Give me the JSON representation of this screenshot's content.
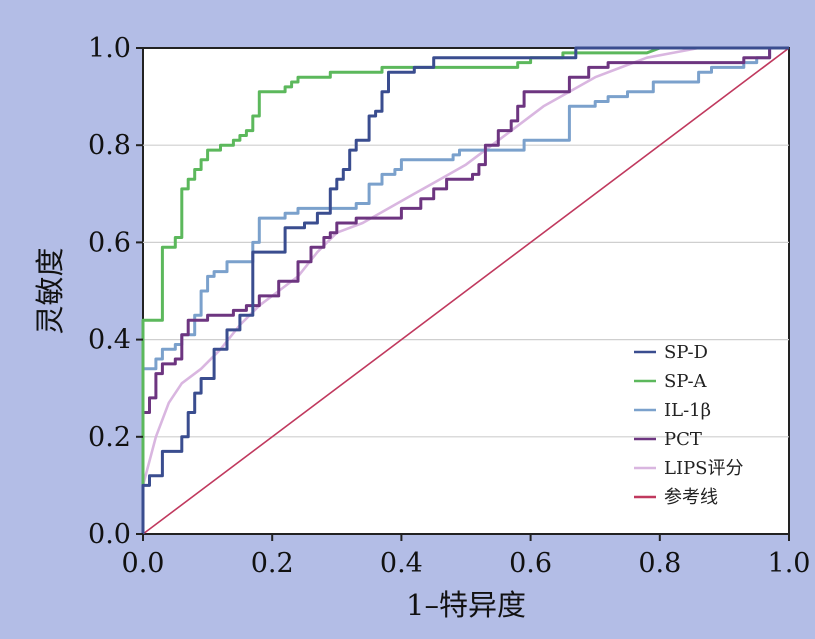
{
  "chart_data": {
    "type": "line",
    "title": "",
    "xlabel": "1–特异度",
    "ylabel": "灵敏度",
    "xlim": [
      0,
      1
    ],
    "ylim": [
      0,
      1
    ],
    "x_ticks": [
      "0.0",
      "0.2",
      "0.4",
      "0.6",
      "0.8",
      "1.0"
    ],
    "y_ticks": [
      "0.0",
      "0.2",
      "0.4",
      "0.6",
      "0.8",
      "1.0"
    ],
    "grid": "horizontal",
    "legend_position": "bottom-right",
    "series": [
      {
        "name": "SP-D",
        "color": "#3a4d8f",
        "points": [
          [
            0,
            0
          ],
          [
            0,
            0.1
          ],
          [
            0.01,
            0.1
          ],
          [
            0.01,
            0.12
          ],
          [
            0.03,
            0.12
          ],
          [
            0.03,
            0.17
          ],
          [
            0.06,
            0.17
          ],
          [
            0.06,
            0.2
          ],
          [
            0.07,
            0.2
          ],
          [
            0.07,
            0.25
          ],
          [
            0.08,
            0.25
          ],
          [
            0.08,
            0.29
          ],
          [
            0.09,
            0.29
          ],
          [
            0.09,
            0.32
          ],
          [
            0.11,
            0.32
          ],
          [
            0.11,
            0.38
          ],
          [
            0.13,
            0.38
          ],
          [
            0.13,
            0.42
          ],
          [
            0.15,
            0.42
          ],
          [
            0.15,
            0.45
          ],
          [
            0.17,
            0.45
          ],
          [
            0.17,
            0.58
          ],
          [
            0.22,
            0.58
          ],
          [
            0.22,
            0.63
          ],
          [
            0.25,
            0.63
          ],
          [
            0.25,
            0.64
          ],
          [
            0.27,
            0.64
          ],
          [
            0.27,
            0.66
          ],
          [
            0.29,
            0.66
          ],
          [
            0.29,
            0.71
          ],
          [
            0.3,
            0.71
          ],
          [
            0.3,
            0.73
          ],
          [
            0.31,
            0.73
          ],
          [
            0.31,
            0.75
          ],
          [
            0.32,
            0.75
          ],
          [
            0.32,
            0.79
          ],
          [
            0.33,
            0.79
          ],
          [
            0.33,
            0.81
          ],
          [
            0.35,
            0.81
          ],
          [
            0.35,
            0.86
          ],
          [
            0.36,
            0.86
          ],
          [
            0.36,
            0.87
          ],
          [
            0.37,
            0.87
          ],
          [
            0.37,
            0.91
          ],
          [
            0.38,
            0.91
          ],
          [
            0.38,
            0.95
          ],
          [
            0.42,
            0.95
          ],
          [
            0.42,
            0.96
          ],
          [
            0.45,
            0.96
          ],
          [
            0.45,
            0.98
          ],
          [
            0.6,
            0.98
          ],
          [
            0.67,
            0.98
          ],
          [
            0.67,
            1.0
          ],
          [
            1.0,
            1.0
          ]
        ]
      },
      {
        "name": "SP-A",
        "color": "#5cb85c",
        "points": [
          [
            0,
            0
          ],
          [
            0,
            0.44
          ],
          [
            0.03,
            0.44
          ],
          [
            0.03,
            0.59
          ],
          [
            0.05,
            0.59
          ],
          [
            0.05,
            0.61
          ],
          [
            0.06,
            0.61
          ],
          [
            0.06,
            0.65
          ],
          [
            0.06,
            0.71
          ],
          [
            0.07,
            0.71
          ],
          [
            0.07,
            0.73
          ],
          [
            0.08,
            0.73
          ],
          [
            0.08,
            0.75
          ],
          [
            0.09,
            0.75
          ],
          [
            0.09,
            0.77
          ],
          [
            0.1,
            0.77
          ],
          [
            0.1,
            0.79
          ],
          [
            0.12,
            0.79
          ],
          [
            0.12,
            0.8
          ],
          [
            0.14,
            0.8
          ],
          [
            0.14,
            0.81
          ],
          [
            0.15,
            0.81
          ],
          [
            0.15,
            0.82
          ],
          [
            0.16,
            0.82
          ],
          [
            0.16,
            0.83
          ],
          [
            0.17,
            0.83
          ],
          [
            0.17,
            0.86
          ],
          [
            0.18,
            0.86
          ],
          [
            0.18,
            0.91
          ],
          [
            0.22,
            0.91
          ],
          [
            0.22,
            0.92
          ],
          [
            0.23,
            0.92
          ],
          [
            0.23,
            0.93
          ],
          [
            0.24,
            0.93
          ],
          [
            0.24,
            0.94
          ],
          [
            0.29,
            0.94
          ],
          [
            0.29,
            0.95
          ],
          [
            0.37,
            0.95
          ],
          [
            0.37,
            0.96
          ],
          [
            0.58,
            0.96
          ],
          [
            0.58,
            0.97
          ],
          [
            0.6,
            0.97
          ],
          [
            0.6,
            0.98
          ],
          [
            0.65,
            0.98
          ],
          [
            0.65,
            0.99
          ],
          [
            0.78,
            0.99
          ],
          [
            0.8,
            1.0
          ],
          [
            1.0,
            1.0
          ]
        ]
      },
      {
        "name": "IL-1β",
        "color": "#7ba1cc",
        "points": [
          [
            0,
            0
          ],
          [
            0,
            0.34
          ],
          [
            0.02,
            0.34
          ],
          [
            0.02,
            0.36
          ],
          [
            0.03,
            0.36
          ],
          [
            0.03,
            0.38
          ],
          [
            0.05,
            0.38
          ],
          [
            0.05,
            0.39
          ],
          [
            0.06,
            0.39
          ],
          [
            0.06,
            0.41
          ],
          [
            0.08,
            0.41
          ],
          [
            0.08,
            0.45
          ],
          [
            0.09,
            0.45
          ],
          [
            0.09,
            0.5
          ],
          [
            0.1,
            0.5
          ],
          [
            0.1,
            0.53
          ],
          [
            0.11,
            0.53
          ],
          [
            0.11,
            0.54
          ],
          [
            0.13,
            0.54
          ],
          [
            0.13,
            0.56
          ],
          [
            0.17,
            0.56
          ],
          [
            0.17,
            0.6
          ],
          [
            0.18,
            0.6
          ],
          [
            0.18,
            0.65
          ],
          [
            0.22,
            0.65
          ],
          [
            0.22,
            0.66
          ],
          [
            0.24,
            0.66
          ],
          [
            0.24,
            0.67
          ],
          [
            0.33,
            0.67
          ],
          [
            0.33,
            0.68
          ],
          [
            0.35,
            0.68
          ],
          [
            0.35,
            0.72
          ],
          [
            0.37,
            0.72
          ],
          [
            0.37,
            0.74
          ],
          [
            0.39,
            0.74
          ],
          [
            0.39,
            0.75
          ],
          [
            0.4,
            0.75
          ],
          [
            0.4,
            0.77
          ],
          [
            0.48,
            0.77
          ],
          [
            0.48,
            0.78
          ],
          [
            0.49,
            0.78
          ],
          [
            0.49,
            0.79
          ],
          [
            0.59,
            0.79
          ],
          [
            0.59,
            0.81
          ],
          [
            0.66,
            0.81
          ],
          [
            0.66,
            0.88
          ],
          [
            0.7,
            0.88
          ],
          [
            0.7,
            0.89
          ],
          [
            0.72,
            0.89
          ],
          [
            0.72,
            0.9
          ],
          [
            0.75,
            0.9
          ],
          [
            0.75,
            0.91
          ],
          [
            0.79,
            0.91
          ],
          [
            0.79,
            0.93
          ],
          [
            0.86,
            0.93
          ],
          [
            0.86,
            0.95
          ],
          [
            0.88,
            0.95
          ],
          [
            0.88,
            0.96
          ],
          [
            0.93,
            0.96
          ],
          [
            0.93,
            0.97
          ],
          [
            0.95,
            0.97
          ],
          [
            0.95,
            0.98
          ],
          [
            0.97,
            0.98
          ],
          [
            0.97,
            1.0
          ],
          [
            1.0,
            1.0
          ]
        ]
      },
      {
        "name": "PCT",
        "color": "#6d3580",
        "points": [
          [
            0,
            0
          ],
          [
            0,
            0.25
          ],
          [
            0.01,
            0.25
          ],
          [
            0.01,
            0.28
          ],
          [
            0.02,
            0.28
          ],
          [
            0.02,
            0.33
          ],
          [
            0.03,
            0.33
          ],
          [
            0.03,
            0.35
          ],
          [
            0.05,
            0.35
          ],
          [
            0.05,
            0.36
          ],
          [
            0.06,
            0.36
          ],
          [
            0.06,
            0.41
          ],
          [
            0.07,
            0.41
          ],
          [
            0.07,
            0.44
          ],
          [
            0.1,
            0.44
          ],
          [
            0.1,
            0.45
          ],
          [
            0.14,
            0.45
          ],
          [
            0.14,
            0.46
          ],
          [
            0.16,
            0.46
          ],
          [
            0.16,
            0.47
          ],
          [
            0.18,
            0.47
          ],
          [
            0.18,
            0.49
          ],
          [
            0.21,
            0.49
          ],
          [
            0.21,
            0.52
          ],
          [
            0.24,
            0.52
          ],
          [
            0.24,
            0.56
          ],
          [
            0.26,
            0.56
          ],
          [
            0.26,
            0.59
          ],
          [
            0.28,
            0.59
          ],
          [
            0.28,
            0.61
          ],
          [
            0.29,
            0.61
          ],
          [
            0.29,
            0.62
          ],
          [
            0.3,
            0.62
          ],
          [
            0.3,
            0.64
          ],
          [
            0.33,
            0.64
          ],
          [
            0.33,
            0.65
          ],
          [
            0.4,
            0.65
          ],
          [
            0.4,
            0.67
          ],
          [
            0.43,
            0.67
          ],
          [
            0.43,
            0.69
          ],
          [
            0.45,
            0.69
          ],
          [
            0.45,
            0.71
          ],
          [
            0.47,
            0.71
          ],
          [
            0.47,
            0.73
          ],
          [
            0.51,
            0.73
          ],
          [
            0.51,
            0.74
          ],
          [
            0.52,
            0.74
          ],
          [
            0.52,
            0.76
          ],
          [
            0.53,
            0.76
          ],
          [
            0.53,
            0.8
          ],
          [
            0.55,
            0.8
          ],
          [
            0.55,
            0.83
          ],
          [
            0.57,
            0.83
          ],
          [
            0.57,
            0.85
          ],
          [
            0.58,
            0.85
          ],
          [
            0.58,
            0.88
          ],
          [
            0.59,
            0.88
          ],
          [
            0.59,
            0.91
          ],
          [
            0.66,
            0.91
          ],
          [
            0.66,
            0.94
          ],
          [
            0.69,
            0.94
          ],
          [
            0.69,
            0.96
          ],
          [
            0.72,
            0.96
          ],
          [
            0.72,
            0.97
          ],
          [
            0.93,
            0.97
          ],
          [
            0.93,
            0.98
          ],
          [
            0.97,
            0.98
          ],
          [
            0.97,
            1.0
          ],
          [
            1.0,
            1.0
          ]
        ]
      },
      {
        "name": "LIPS评分",
        "color": "#d9b6e0",
        "points": [
          [
            0,
            0
          ],
          [
            0,
            0.1
          ],
          [
            0.02,
            0.2
          ],
          [
            0.04,
            0.27
          ],
          [
            0.06,
            0.31
          ],
          [
            0.09,
            0.34
          ],
          [
            0.12,
            0.38
          ],
          [
            0.15,
            0.43
          ],
          [
            0.18,
            0.47
          ],
          [
            0.21,
            0.5
          ],
          [
            0.24,
            0.53
          ],
          [
            0.27,
            0.58
          ],
          [
            0.3,
            0.62
          ],
          [
            0.34,
            0.64
          ],
          [
            0.38,
            0.67
          ],
          [
            0.42,
            0.7
          ],
          [
            0.46,
            0.73
          ],
          [
            0.5,
            0.76
          ],
          [
            0.54,
            0.8
          ],
          [
            0.58,
            0.84
          ],
          [
            0.62,
            0.88
          ],
          [
            0.66,
            0.91
          ],
          [
            0.7,
            0.94
          ],
          [
            0.74,
            0.96
          ],
          [
            0.78,
            0.98
          ],
          [
            0.82,
            0.99
          ],
          [
            0.86,
            1.0
          ],
          [
            1.0,
            1.0
          ]
        ]
      },
      {
        "name": "参考线",
        "color": "#c0395e",
        "points": [
          [
            0,
            0
          ],
          [
            1,
            1
          ]
        ]
      }
    ]
  }
}
